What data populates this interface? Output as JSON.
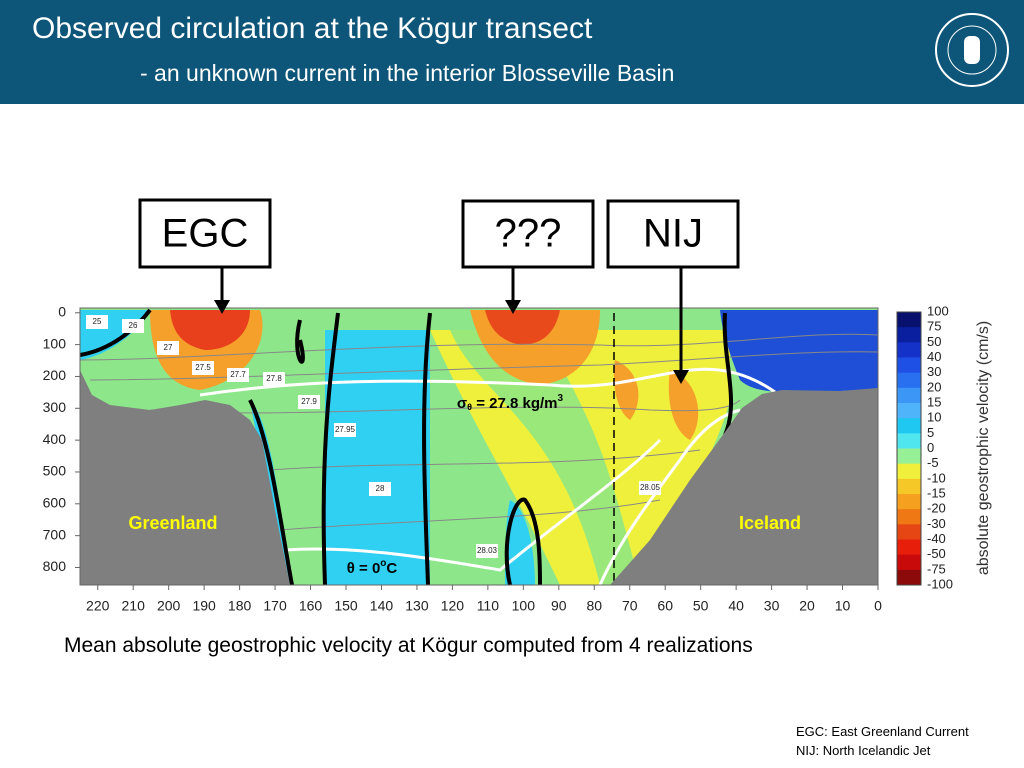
{
  "header": {
    "title": "Observed circulation at the Kögur transect",
    "subtitle": "- an unknown current in the interior Blosseville Basin"
  },
  "callouts": [
    "EGC",
    "???",
    "NIJ"
  ],
  "figure": {
    "xlim": [
      225,
      0
    ],
    "ylim": [
      -15,
      855
    ],
    "xticks": [
      220,
      210,
      200,
      190,
      180,
      170,
      160,
      150,
      140,
      130,
      120,
      110,
      100,
      90,
      80,
      70,
      60,
      50,
      40,
      30,
      20,
      10,
      0
    ],
    "yticks": [
      0,
      100,
      200,
      300,
      400,
      500,
      600,
      700,
      800
    ],
    "contour_labels": [
      25,
      26,
      27,
      27.5,
      27.7,
      27.8,
      27.9,
      27.95,
      28,
      28.03,
      28.05
    ],
    "landmarks": [
      "Greenland",
      "Iceland"
    ],
    "sigma_label": {
      "symbol": "σ",
      "sub": "θ",
      "text": " = 27.8 kg/m",
      "sup": "3"
    },
    "theta_label": {
      "text": "θ = 0",
      "sup": "o",
      "unit": "C"
    },
    "colorbar": {
      "label": "absolute geostrophic velocity (cm/s)",
      "ticks": [
        100,
        75,
        50,
        40,
        30,
        20,
        15,
        10,
        5,
        0,
        -5,
        -10,
        -15,
        -20,
        -30,
        -40,
        -50,
        -75,
        -100
      ],
      "colors": [
        "#08106e",
        "#0a1fa0",
        "#1432c8",
        "#1e50e6",
        "#2870f0",
        "#3c96f5",
        "#50b4fa",
        "#1ec8f0",
        "#50e6f0",
        "#96f096",
        "#f0f03c",
        "#f5c828",
        "#f5a01e",
        "#f07814",
        "#e64614",
        "#e61e0a",
        "#c80a0a",
        "#8c0a0a"
      ]
    }
  },
  "caption": "Mean absolute geostrophic velocity at Kögur computed from 4 realizations",
  "footnotes": [
    "EGC: East Greenland Current",
    "NIJ: North Icelandic Jet"
  ]
}
